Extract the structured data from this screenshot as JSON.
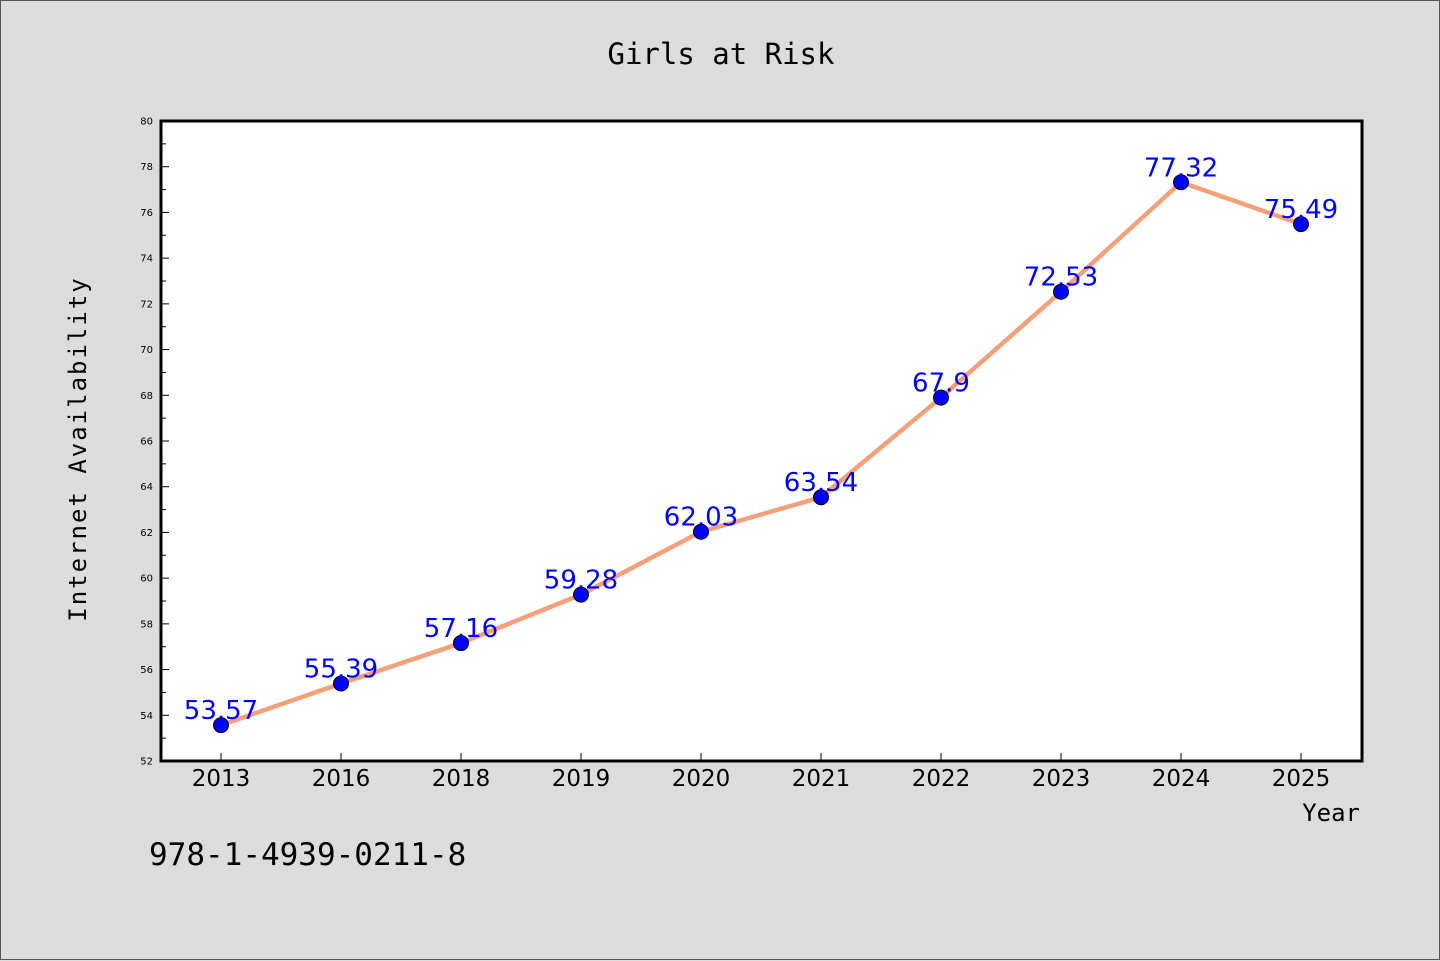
{
  "isbn": "978-1-4939-0211-8",
  "colors": {
    "background": "#dcdcdc",
    "plot_background": "#ffffff",
    "line": "#f4a07a",
    "marker": "#0000ff",
    "data_label": "#0000ff"
  },
  "chart_data": {
    "type": "line",
    "title": "Girls at Risk",
    "xlabel": "Year",
    "ylabel": "Internet Availability",
    "categories": [
      "2013",
      "2016",
      "2018",
      "2019",
      "2020",
      "2021",
      "2022",
      "2023",
      "2024",
      "2025"
    ],
    "series": [
      {
        "values": [
          53.57,
          55.39,
          57.16,
          59.28,
          62.03,
          63.54,
          67.9,
          72.53,
          77.32,
          75.49
        ],
        "labels": [
          "53.57",
          "55.39",
          "57.16",
          "59.28",
          "62.03",
          "63.54",
          "67.9",
          "72.53",
          "77.32",
          "75.49"
        ]
      }
    ],
    "ylim": [
      52,
      80
    ],
    "yticks": [
      "52",
      "54",
      "56",
      "58",
      "60",
      "62",
      "64",
      "66",
      "68",
      "70",
      "72",
      "74",
      "76",
      "78",
      "80"
    ],
    "grid": false,
    "legend": "none"
  }
}
